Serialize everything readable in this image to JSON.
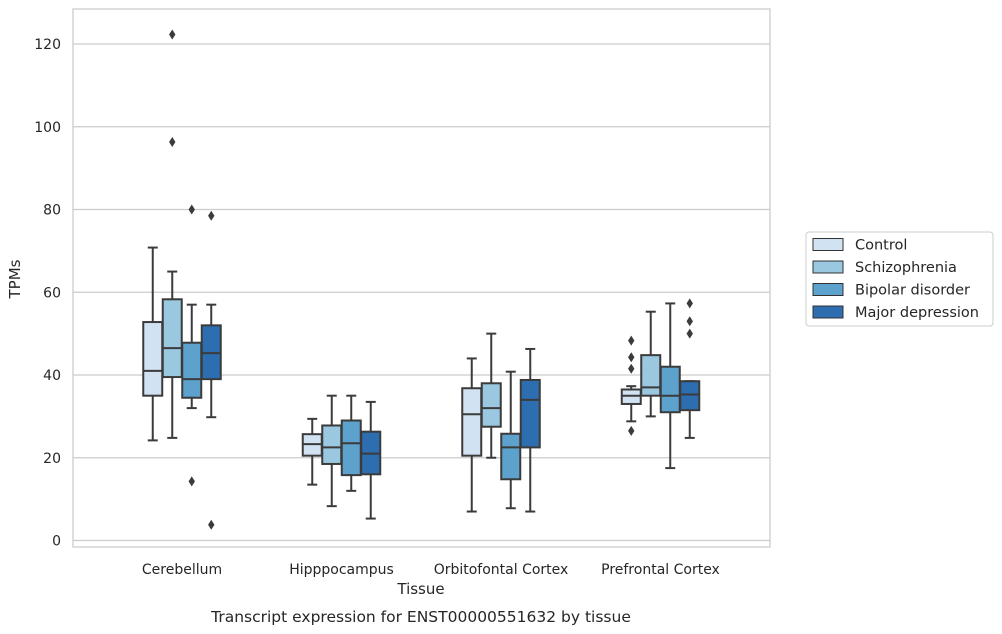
{
  "chart_data": {
    "type": "box",
    "title": "",
    "caption": "Transcript expression for ENST00000551632 by tissue",
    "xlabel": "Tissue",
    "ylabel": "TPMs",
    "ylim": [
      -2,
      128
    ],
    "yticks": [
      0,
      20,
      40,
      60,
      80,
      100,
      120
    ],
    "grid": "horizontal",
    "legend_position": "right",
    "categories": [
      "Cerebellum",
      "Hipppocampus",
      "Orbitofontal Cortex",
      "Prefrontal Cortex"
    ],
    "series": [
      {
        "name": "Control",
        "color": "#d1e2f2",
        "boxes": [
          {
            "whislo": 24.2,
            "q1": 35.0,
            "med": 41.0,
            "q3": 52.8,
            "whishi": 70.8,
            "fliers": []
          },
          {
            "whislo": 13.5,
            "q1": 20.5,
            "med": 23.3,
            "q3": 25.7,
            "whishi": 29.4,
            "fliers": []
          },
          {
            "whislo": 7.0,
            "q1": 20.5,
            "med": 30.5,
            "q3": 36.8,
            "whishi": 44.0,
            "fliers": []
          },
          {
            "whislo": 28.8,
            "q1": 33.0,
            "med": 35.0,
            "q3": 36.5,
            "whishi": 37.3,
            "fliers": [
              26.5,
              41.5,
              44.3,
              48.3
            ]
          }
        ]
      },
      {
        "name": "Schizophrenia",
        "color": "#9ac8e0",
        "boxes": [
          {
            "whislo": 24.8,
            "q1": 39.5,
            "med": 46.5,
            "q3": 58.3,
            "whishi": 65.0,
            "fliers": [
              96.3,
              122.3
            ]
          },
          {
            "whislo": 8.3,
            "q1": 18.5,
            "med": 22.5,
            "q3": 27.8,
            "whishi": 35.0,
            "fliers": []
          },
          {
            "whislo": 20.0,
            "q1": 27.5,
            "med": 32.0,
            "q3": 38.0,
            "whishi": 50.0,
            "fliers": []
          },
          {
            "whislo": 30.0,
            "q1": 35.0,
            "med": 37.0,
            "q3": 44.8,
            "whishi": 55.3,
            "fliers": []
          }
        ]
      },
      {
        "name": "Bipolar disorder",
        "color": "#5da2cd",
        "boxes": [
          {
            "whislo": 32.0,
            "q1": 34.5,
            "med": 39.0,
            "q3": 47.8,
            "whishi": 57.0,
            "fliers": [
              14.3,
              80.0
            ]
          },
          {
            "whislo": 12.0,
            "q1": 15.8,
            "med": 23.5,
            "q3": 29.0,
            "whishi": 35.0,
            "fliers": []
          },
          {
            "whislo": 7.8,
            "q1": 14.8,
            "med": 22.5,
            "q3": 25.8,
            "whishi": 40.8,
            "fliers": []
          },
          {
            "whislo": 17.5,
            "q1": 31.0,
            "med": 35.0,
            "q3": 42.0,
            "whishi": 57.3,
            "fliers": []
          }
        ]
      },
      {
        "name": "Major depression",
        "color": "#2c6eaf",
        "boxes": [
          {
            "whislo": 29.8,
            "q1": 39.0,
            "med": 45.3,
            "q3": 52.0,
            "whishi": 57.0,
            "fliers": [
              3.8,
              78.5
            ]
          },
          {
            "whislo": 5.3,
            "q1": 16.0,
            "med": 21.0,
            "q3": 26.3,
            "whishi": 33.5,
            "fliers": []
          },
          {
            "whislo": 7.0,
            "q1": 22.5,
            "med": 34.0,
            "q3": 38.8,
            "whishi": 46.3,
            "fliers": []
          },
          {
            "whislo": 24.8,
            "q1": 31.5,
            "med": 35.3,
            "q3": 38.5,
            "whishi": 38.5,
            "fliers": [
              50.0,
              53.0,
              57.3
            ]
          }
        ]
      }
    ]
  }
}
